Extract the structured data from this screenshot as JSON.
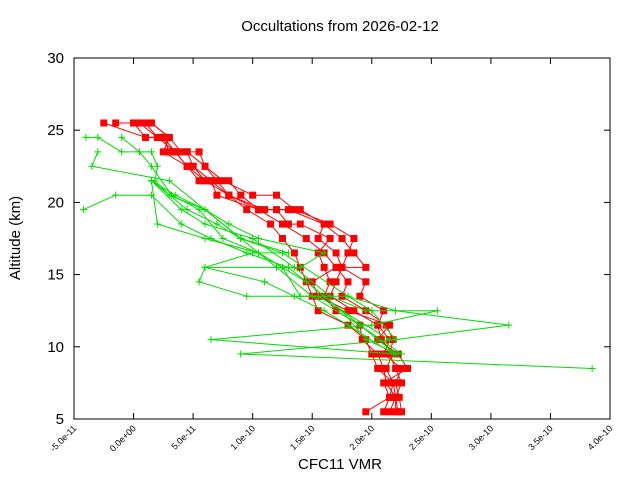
{
  "chart_data": {
    "type": "line",
    "title": "Occultations from 2026-02-12",
    "xlabel": "CFC11 VMR",
    "ylabel": "Altitude (km)",
    "xlim": [
      -5e-11,
      4e-10
    ],
    "ylim": [
      5,
      30
    ],
    "x_ticks": [
      -5e-11,
      0,
      5e-11,
      1e-10,
      1.5e-10,
      2e-10,
      2.5e-10,
      3e-10,
      3.5e-10,
      4e-10
    ],
    "x_tick_labels": [
      "-5.0e-11",
      "0.0e+00",
      "5.0e-11",
      "1.0e-10",
      "1.5e-10",
      "2.0e-10",
      "2.5e-10",
      "3.0e-10",
      "3.5e-10",
      "4.0e-10"
    ],
    "y_ticks": [
      5,
      10,
      15,
      20,
      25,
      30
    ],
    "y_tick_labels": [
      "5",
      "10",
      "15",
      "20",
      "25",
      "30"
    ],
    "grid": false,
    "series": [
      {
        "name": "red-1",
        "color": "#ff0000",
        "marker": "square",
        "x": [
          1.95e-10,
          2.15e-10,
          2.18e-10,
          2.12e-10,
          2.18e-10,
          2.08e-10,
          2.05e-10,
          2.1e-10,
          1.9e-10,
          1.95e-10,
          1.75e-10,
          1.7e-10,
          1.55e-10,
          1.6e-10,
          1.3e-10,
          1.05e-10,
          9e-11,
          8e-11,
          6e-11,
          5e-11,
          4.5e-11,
          3e-11,
          2.5e-11,
          1e-11,
          0
        ],
        "y": [
          5.5,
          6.5,
          7.5,
          8.5,
          9.5,
          10.5,
          11.5,
          12.5,
          13.5,
          14.5,
          15.5,
          16.5,
          17.5,
          18.5,
          19.5,
          19.5,
          20.5,
          21.5,
          21.5,
          22.5,
          23.5,
          23.5,
          24.5,
          24.5,
          25.5
        ]
      },
      {
        "name": "red-2",
        "color": "#ff0000",
        "marker": "square",
        "x": [
          2.22e-10,
          2.2e-10,
          2.25e-10,
          2.2e-10,
          2.15e-10,
          2.18e-10,
          2.12e-10,
          1.95e-10,
          1.75e-10,
          1.8e-10,
          1.7e-10,
          1.6e-10,
          1.45e-10,
          1.25e-10,
          1.05e-10,
          8e-11,
          7e-11,
          6e-11,
          5.5e-11,
          4e-11,
          3e-11,
          1.5e-11,
          0
        ],
        "y": [
          5.5,
          6.5,
          7.5,
          8.5,
          9.5,
          10.5,
          11.5,
          12.5,
          13.5,
          14.5,
          15.5,
          16.5,
          17.5,
          18.5,
          19.5,
          20.5,
          21.5,
          22.5,
          23.5,
          23.5,
          24.5,
          25.5,
          25.5
        ]
      },
      {
        "name": "red-3",
        "color": "#ff0000",
        "marker": "square",
        "x": [
          2.25e-10,
          2.23e-10,
          2.2e-10,
          2.25e-10,
          2.1e-10,
          2.15e-10,
          2.05e-10,
          1.85e-10,
          1.65e-10,
          1.7e-10,
          1.75e-10,
          1.8e-10,
          1.85e-10,
          1.65e-10,
          1.35e-10,
          1.2e-10,
          1e-10,
          7.5e-11,
          6e-11,
          4.5e-11,
          3.5e-11,
          2e-11,
          5e-12
        ],
        "y": [
          5.5,
          6.5,
          7.5,
          8.5,
          9.5,
          10.5,
          11.5,
          12.5,
          13.5,
          14.5,
          15.5,
          16.5,
          17.5,
          18.5,
          19.5,
          20.5,
          20.5,
          21.5,
          22.5,
          23.5,
          23.5,
          24.5,
          25.5
        ]
      },
      {
        "name": "red-4",
        "color": "#ff0000",
        "marker": "square",
        "x": [
          2.1e-10,
          2.15e-10,
          2.1e-10,
          2.3e-10,
          2.22e-10,
          2.05e-10,
          2.15e-10,
          1.8e-10,
          1.55e-10,
          1.5e-10,
          1.7e-10,
          1.95e-10,
          1.85e-10,
          1.75e-10,
          1.6e-10,
          1.4e-10,
          1.05e-10,
          7e-11,
          6.5e-11,
          5e-11,
          4.5e-11,
          2.5e-11,
          3e-11,
          1.5e-11,
          -1.5e-11
        ],
        "y": [
          5.5,
          6.5,
          7.5,
          8.5,
          9.5,
          10.5,
          11.5,
          12.5,
          13.5,
          14.5,
          15.5,
          15.5,
          16.5,
          17.5,
          18.5,
          19.5,
          19.5,
          20.5,
          21.5,
          22.5,
          22.5,
          23.5,
          24.5,
          25.5,
          25.5
        ]
      },
      {
        "name": "red-5",
        "color": "#ff0000",
        "marker": "square",
        "x": [
          2.15e-10,
          2.2e-10,
          2.12e-10,
          2.1e-10,
          2.05e-10,
          1.92e-10,
          1.9e-10,
          1.7e-10,
          1.6e-10,
          1.65e-10,
          1.6e-10,
          1.55e-10,
          1.65e-10,
          1.4e-10,
          1.3e-10,
          1.2e-10,
          1.1e-10,
          8e-11,
          6.5e-11,
          5.5e-11,
          4.5e-11,
          3.5e-11,
          2.5e-11,
          1e-11,
          -2.5e-11
        ],
        "y": [
          5.5,
          6.5,
          7.5,
          8.5,
          9.5,
          10.5,
          11.5,
          12.5,
          13.5,
          14.5,
          15.5,
          16.5,
          17.5,
          18.5,
          18.5,
          19.5,
          19.5,
          20.5,
          21.5,
          21.5,
          22.5,
          23.5,
          24.5,
          24.5,
          25.5
        ]
      },
      {
        "name": "red-6",
        "color": "#ff0000",
        "marker": "square",
        "x": [
          2.2e-10,
          2.2e-10,
          2.18e-10,
          2.05e-10,
          2e-10,
          1.95e-10,
          1.8e-10,
          1.55e-10,
          1.5e-10,
          1.45e-10,
          1.4e-10,
          1.35e-10,
          1.25e-10,
          1.15e-10,
          9.5e-11,
          8e-11,
          6e-11,
          4.5e-11,
          3.5e-11,
          2.5e-11,
          2e-11,
          1e-11,
          5e-12
        ],
        "y": [
          5.5,
          6.5,
          7.5,
          8.5,
          9.5,
          10.5,
          11.5,
          12.5,
          13.5,
          14.5,
          15.5,
          16.5,
          17.5,
          18.5,
          19.5,
          20.5,
          21.5,
          22.5,
          23.5,
          24.5,
          24.5,
          25.5,
          25.5
        ]
      },
      {
        "name": "green-1",
        "color": "#00dd00",
        "marker": "plus",
        "x": [
          2.2e-10,
          1.9e-10,
          1.5e-10,
          1.2e-10,
          9e-11,
          6e-11,
          3e-11,
          1.8e-11,
          2e-11,
          1.5e-11,
          -1e-11,
          -3e-11,
          -4e-11
        ],
        "y": [
          9.5,
          11.5,
          13.5,
          15.5,
          17.5,
          19.5,
          20.5,
          21.5,
          22.5,
          23.5,
          23.5,
          24.5,
          24.5
        ]
      },
      {
        "name": "green-2",
        "color": "#00dd00",
        "marker": "plus",
        "x": [
          2.22e-10,
          1.95e-10,
          1.75e-10,
          1.45e-10,
          1.05e-10,
          7.5e-11,
          5.5e-11,
          3.2e-11,
          1.5e-11,
          5e-12,
          -1e-11
        ],
        "y": [
          9.5,
          10.5,
          12.5,
          14.5,
          16.5,
          17.5,
          19.5,
          20.5,
          22.5,
          23.5,
          24.5
        ]
      },
      {
        "name": "green-3",
        "color": "#00dd00",
        "marker": "plus",
        "x": [
          2.2e-10,
          3.15e-10,
          2.2e-10,
          1.8e-10,
          1.25e-10,
          9e-11,
          6e-11,
          3e-11,
          -3.5e-11,
          -3e-11
        ],
        "y": [
          10.5,
          11.5,
          12.5,
          13.5,
          16.5,
          17.5,
          19.5,
          21.5,
          22.5,
          23.5
        ]
      },
      {
        "name": "green-4",
        "color": "#00dd00",
        "marker": "plus",
        "x": [
          2.25e-10,
          1.9e-10,
          1.6e-10,
          1.3e-10,
          9.5e-11,
          6.5e-11,
          4e-11,
          1.5e-11,
          -1.5e-11,
          -4.2e-11
        ],
        "y": [
          9.5,
          11.5,
          13.5,
          15.5,
          16.5,
          17.5,
          18.5,
          20.5,
          20.5,
          19.5
        ]
      },
      {
        "name": "green-5",
        "color": "#00dd00",
        "marker": "plus",
        "x": [
          2.2e-10,
          6.5e-11,
          2e-10,
          2.55e-10,
          1.95e-10,
          1.65e-10,
          1.35e-10,
          1e-10,
          6e-11,
          4e-11,
          1.5e-11
        ],
        "y": [
          9.5,
          10.5,
          11.5,
          12.5,
          12.5,
          13.5,
          15.5,
          17.5,
          18.5,
          19.5,
          21.5
        ]
      },
      {
        "name": "green-6",
        "color": "#00dd00",
        "marker": "plus",
        "x": [
          3.85e-10,
          9e-11,
          2.2e-10,
          2e-10,
          1.8e-10,
          1.4e-10,
          1.25e-10,
          1.05e-10,
          6e-11,
          2e-11,
          1.5e-11
        ],
        "y": [
          8.5,
          9.5,
          10.5,
          12.5,
          13.5,
          13.5,
          15.5,
          16.5,
          17.5,
          18.5,
          21.5
        ]
      },
      {
        "name": "green-7",
        "color": "#00dd00",
        "marker": "plus",
        "x": [
          2.15e-10,
          1.75e-10,
          1.55e-10,
          9.5e-11,
          5.5e-11,
          6e-11,
          1e-10,
          1.3e-10,
          9e-11,
          7e-11,
          4.5e-11,
          1.5e-11
        ],
        "y": [
          10.5,
          12.5,
          13.5,
          13.5,
          14.5,
          15.5,
          16.5,
          16.5,
          17.5,
          18.5,
          19.5,
          21.5
        ]
      },
      {
        "name": "green-8",
        "color": "#00dd00",
        "marker": "plus",
        "x": [
          2.18e-10,
          1.8e-10,
          1.6e-10,
          1.35e-10,
          1.1e-10,
          6e-11,
          1.4e-10,
          1.6e-10,
          1.05e-10,
          8e-11,
          6e-11,
          3.5e-11,
          1.5e-11
        ],
        "y": [
          9.5,
          11.5,
          12.5,
          13.5,
          14.5,
          15.5,
          15.5,
          16.5,
          17.5,
          18.5,
          19.5,
          20.5,
          21.5
        ]
      }
    ]
  }
}
